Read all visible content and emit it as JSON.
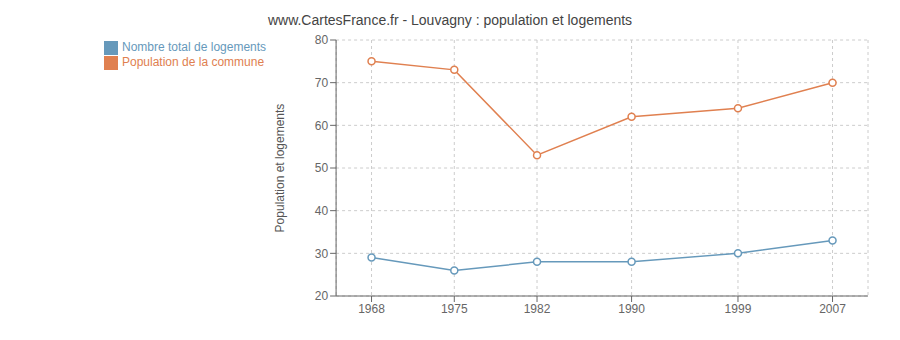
{
  "chart_data": {
    "type": "line",
    "title": "www.CartesFrance.fr - Louvagny : population et logements",
    "y_label": "Population et logements",
    "x": [
      1968,
      1975,
      1982,
      1990,
      1999,
      2007
    ],
    "series": [
      {
        "name": "Nombre total de logements",
        "color": "#6699bb",
        "values": [
          29,
          26,
          28,
          28,
          30,
          33
        ],
        "marker": "circle"
      },
      {
        "name": "Population de la commune",
        "color": "#e08050",
        "values": [
          75,
          73,
          53,
          62,
          64,
          70
        ],
        "marker": "circle"
      }
    ],
    "xlim": [
      1965,
      2010
    ],
    "xticks": [
      1968,
      1975,
      1982,
      1990,
      1999,
      2007
    ],
    "ylim": [
      20,
      80
    ],
    "yticks": [
      20,
      30,
      40,
      50,
      60,
      70,
      80
    ],
    "grid": true,
    "legend": "upper left"
  }
}
